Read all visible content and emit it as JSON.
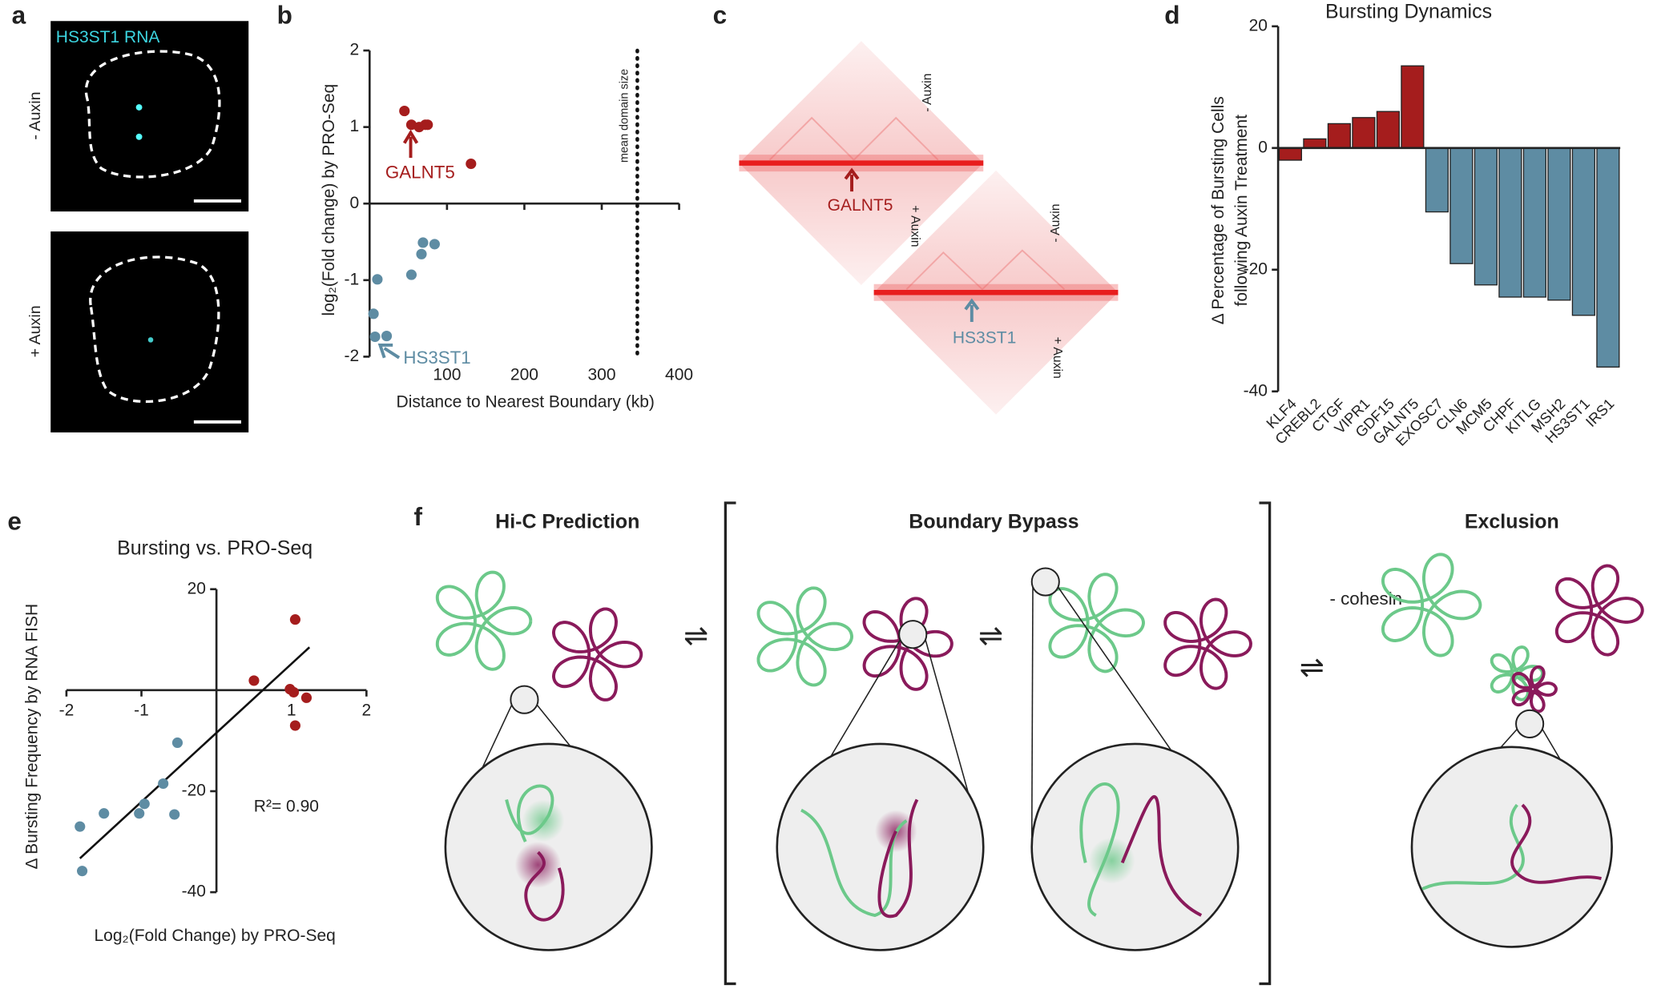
{
  "labels": [
    "a",
    "b",
    "c",
    "d",
    "e",
    "f"
  ],
  "panel_a": {
    "channel": "HS3ST1 RNA",
    "conditions": [
      "- Auxin",
      "+ Auxin"
    ]
  },
  "panel_c": {
    "conditions": [
      "- Auxin",
      "+ Auxin"
    ],
    "genes": [
      "GALNT5",
      "HS3ST1"
    ]
  },
  "panel_f": {
    "titles": [
      "Hi-C Prediction",
      "Boundary Bypass",
      "Exclusion"
    ],
    "condition": "- cohesin",
    "equilibrium": "⇌"
  },
  "chart_data": [
    {
      "type": "scatter",
      "ylabel": "log₂(Fold change) by PRO-Seq",
      "xlabel": "Distance to Nearest Boundary (kb)",
      "xlim": [
        0,
        400
      ],
      "xticks": [
        100,
        200,
        300,
        400
      ],
      "ylim": [
        -2,
        2
      ],
      "yticks": [
        -2,
        -1,
        0,
        1,
        2
      ],
      "series": [
        {
          "color": "#a51d1d",
          "x": [
            45,
            54,
            64,
            72,
            75,
            131
          ],
          "values": [
            1.21,
            1.03,
            1.0,
            1.03,
            1.03,
            0.52
          ]
        },
        {
          "color": "#5e8ca3",
          "x": [
            69,
            84,
            67,
            54,
            10,
            5,
            7,
            22
          ],
          "values": [
            -0.51,
            -0.53,
            -0.66,
            -0.93,
            -0.99,
            -1.44,
            -1.74,
            -1.73
          ]
        }
      ],
      "vline": 346,
      "vline_label": "mean domain size",
      "annotations": [
        "GALNT5",
        "HS3ST1"
      ]
    },
    {
      "type": "bar",
      "title": "Bursting Dynamics",
      "ylabel": [
        "Δ Percentage of Bursting Cells",
        "following Auxin Treatment"
      ],
      "categories": [
        "KLF4",
        "CREBL2",
        "CTGF",
        "VIPR1",
        "GDF15",
        "GALNT5",
        "EXOSC7",
        "CLN6",
        "MCM5",
        "CHPF",
        "KITLG",
        "MSH2",
        "HS3ST1",
        "IRS1"
      ],
      "values": [
        -2,
        1.5,
        4,
        5,
        6,
        13.5,
        -10.5,
        -19,
        -22.5,
        -24.5,
        -24.5,
        -25,
        -27.5,
        -36
      ],
      "colors": [
        "#a51d1d",
        "#a51d1d",
        "#a51d1d",
        "#a51d1d",
        "#a51d1d",
        "#a51d1d",
        "#5e8ca3",
        "#5e8ca3",
        "#5e8ca3",
        "#5e8ca3",
        "#5e8ca3",
        "#5e8ca3",
        "#5e8ca3",
        "#5e8ca3"
      ],
      "ylim": [
        -40,
        20
      ],
      "yticks": [
        -40,
        -20,
        0,
        20
      ]
    },
    {
      "type": "scatter",
      "title": "Bursting vs. PRO-Seq",
      "ylabel": "Δ Bursting Frequency by RNA FISH",
      "xlabel": "Log₂(Fold Change) by PRO-Seq",
      "xlim": [
        -2,
        2
      ],
      "xticks": [
        -2,
        -1,
        1,
        2
      ],
      "ylim": [
        -40,
        20
      ],
      "yticks": [
        -40,
        -20,
        20
      ],
      "series": [
        {
          "color": "#a51d1d",
          "x": [
            1.05,
            0.5,
            0.98,
            1.03,
            1.2,
            1.05
          ],
          "values": [
            14,
            1.9,
            0.2,
            -0.4,
            -1.5,
            -7
          ]
        },
        {
          "color": "#5e8ca3",
          "x": [
            -0.52,
            -0.71,
            -0.96,
            -0.56,
            -1.03,
            -1.5,
            -1.82,
            -1.79
          ],
          "values": [
            -10.4,
            -18.5,
            -22.5,
            -24.6,
            -24.4,
            -24.4,
            -27,
            -35.8
          ]
        }
      ],
      "fit": {
        "x": [
          -1.82,
          1.24
        ],
        "values": [
          -33.3,
          8.5
        ]
      },
      "annotation": "R²= 0.90"
    }
  ]
}
